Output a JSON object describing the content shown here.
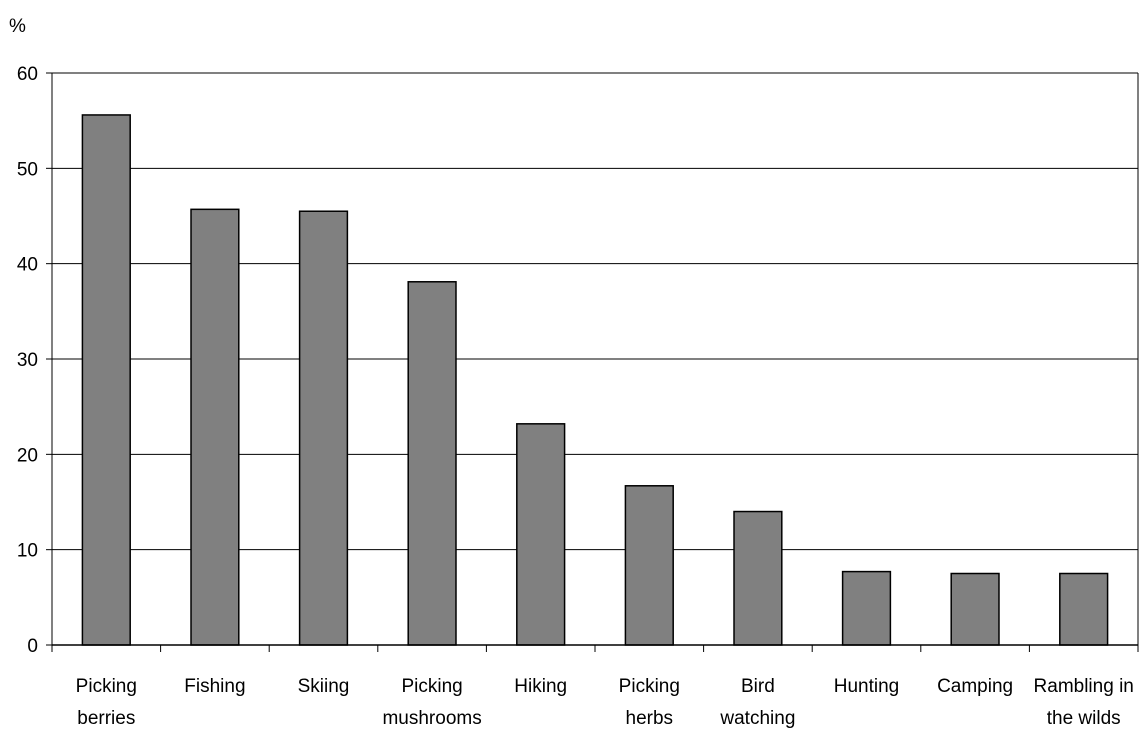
{
  "chart_data": {
    "type": "bar",
    "title": "",
    "ylabel": "%",
    "xlabel": "",
    "ylim": [
      0,
      60
    ],
    "yticks": [
      0,
      10,
      20,
      30,
      40,
      50,
      60
    ],
    "grid": true,
    "categories": [
      [
        "Picking",
        "berries"
      ],
      [
        "Fishing"
      ],
      [
        "Skiing"
      ],
      [
        "Picking",
        "mushrooms"
      ],
      [
        "Hiking"
      ],
      [
        "Picking",
        "herbs"
      ],
      [
        "Bird",
        "watching"
      ],
      [
        "Hunting"
      ],
      [
        "Camping"
      ],
      [
        "Rambling in",
        "the wilds"
      ]
    ],
    "values": [
      55.6,
      45.7,
      45.5,
      38.1,
      23.2,
      16.7,
      14.0,
      7.7,
      7.5,
      7.5
    ],
    "colors": {
      "bar_fill": "#808080",
      "bar_stroke": "#000000",
      "grid": "#000000",
      "axis": "#000000"
    }
  }
}
